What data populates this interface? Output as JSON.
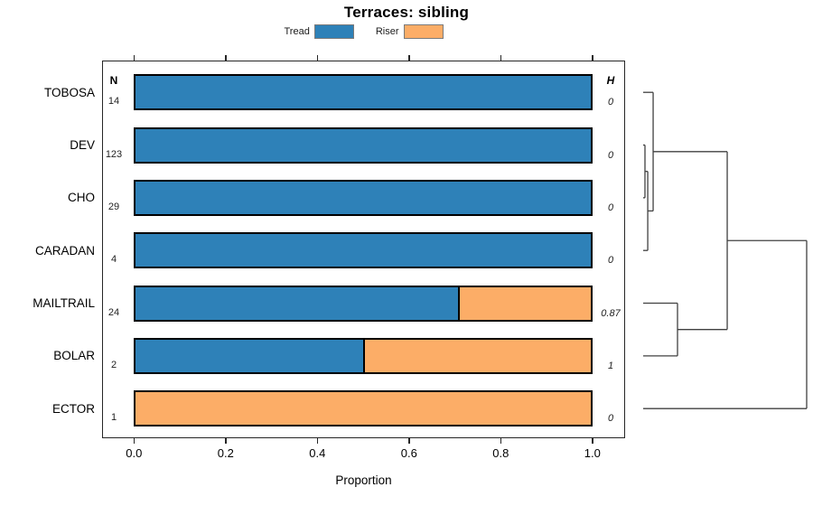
{
  "title": "Terraces: sibling",
  "xlabel": "Proportion",
  "columns": {
    "n_header": "N",
    "h_header": "H"
  },
  "legend": [
    {
      "label": "Tread",
      "color": "#2e81b8"
    },
    {
      "label": "Riser",
      "color": "#fcad67"
    }
  ],
  "colors": {
    "tread": "#2e81b8",
    "riser": "#fcad67",
    "bar_border": "#000000",
    "box_border": "#262626",
    "dendro_line": "#404040"
  },
  "chart_data": {
    "type": "bar",
    "orientation": "horizontal",
    "stacked": true,
    "title": "Terraces: sibling",
    "xlabel": "Proportion",
    "xlim": [
      0,
      1
    ],
    "xticks": [
      0,
      0.2,
      0.4,
      0.6,
      0.8,
      1.0
    ],
    "xtick_labels": [
      "0.0",
      "0.2",
      "0.4",
      "0.6",
      "0.8",
      "1.0"
    ],
    "grid": false,
    "legend_position": "top",
    "categories": [
      "TOBOSA",
      "DEV",
      "CHO",
      "CARADAN",
      "MAILTRAIL",
      "BOLAR",
      "ECTOR"
    ],
    "series": [
      {
        "name": "Tread",
        "color": "#2e81b8",
        "values": [
          1.0,
          1.0,
          1.0,
          1.0,
          0.708,
          0.5,
          0.0
        ]
      },
      {
        "name": "Riser",
        "color": "#fcad67",
        "values": [
          0.0,
          0.0,
          0.0,
          0.0,
          0.292,
          0.5,
          1.0
        ]
      }
    ],
    "n_values": [
      "14",
      "123",
      "29",
      "4",
      "24",
      "2",
      "1"
    ],
    "h_values": [
      "0",
      "0",
      "0",
      "0",
      "0.87",
      "1",
      "0"
    ]
  },
  "dendrogram": {
    "h": 1.0,
    "children": [
      {
        "h": 0.514,
        "children": [
          {
            "h": 0.061,
            "children": [
              {
                "leaf": "TOBOSA"
              },
              {
                "h": 0.028,
                "children": [
                  {
                    "h": 0.011,
                    "children": [
                      {
                        "leaf": "DEV"
                      },
                      {
                        "leaf": "CHO"
                      }
                    ]
                  },
                  {
                    "leaf": "CARADAN"
                  }
                ]
              }
            ]
          },
          {
            "h": 0.21,
            "children": [
              {
                "leaf": "MAILTRAIL"
              },
              {
                "leaf": "BOLAR"
              }
            ]
          }
        ]
      },
      {
        "leaf": "ECTOR"
      }
    ]
  }
}
